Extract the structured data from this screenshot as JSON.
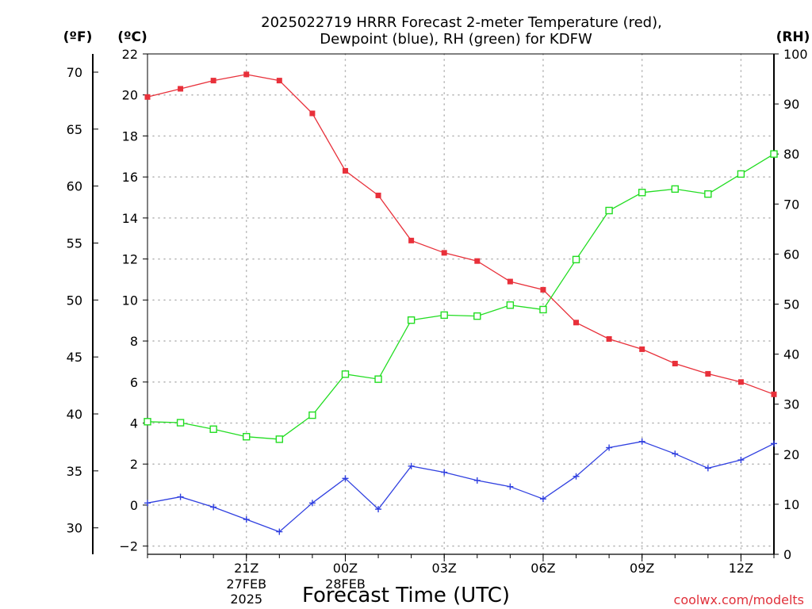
{
  "chart_data": {
    "type": "line",
    "title_line1": "2025022719 HRRR Forecast 2-meter Temperature (red),",
    "title_line2": "Dewpoint (blue), RH (green) for KDFW",
    "xlabel": "Forecast Time (UTC)",
    "credit": "coolwx.com/modelts",
    "axes": {
      "left_f": {
        "unit": "(ºF)",
        "ticks": [
          30,
          35,
          40,
          45,
          50,
          55,
          60,
          65,
          70
        ]
      },
      "left_c": {
        "unit": "(ºC)",
        "ylim": [
          -2.4,
          22
        ],
        "ticks": [
          -2,
          0,
          2,
          4,
          6,
          8,
          10,
          12,
          14,
          16,
          18,
          20,
          22
        ]
      },
      "right_rh": {
        "unit": "(RH)",
        "ylim": [
          0,
          100
        ],
        "ticks": [
          0,
          10,
          20,
          30,
          40,
          50,
          60,
          70,
          80,
          90,
          100
        ]
      }
    },
    "x_hours": [
      18,
      19,
      20,
      21,
      22,
      23,
      24,
      25,
      26,
      27,
      28,
      29,
      30,
      31,
      32,
      33,
      34,
      35,
      36,
      37
    ],
    "x_ticks": [
      {
        "hour": 21,
        "label": "21Z",
        "sub": [
          "27FEB",
          "2025"
        ]
      },
      {
        "hour": 24,
        "label": "00Z",
        "sub": [
          "28FEB"
        ]
      },
      {
        "hour": 27,
        "label": "03Z",
        "sub": []
      },
      {
        "hour": 30,
        "label": "06Z",
        "sub": []
      },
      {
        "hour": 33,
        "label": "09Z",
        "sub": []
      },
      {
        "hour": 36,
        "label": "12Z",
        "sub": []
      }
    ],
    "series": [
      {
        "name": "Temperature",
        "color": "#e8303a",
        "marker": "filled-square",
        "axis": "c",
        "values": [
          19.9,
          20.3,
          20.7,
          21.0,
          20.7,
          19.1,
          16.3,
          15.1,
          12.9,
          12.3,
          11.9,
          10.9,
          10.5,
          8.9,
          8.1,
          7.6,
          6.9,
          6.4,
          6.0,
          5.4
        ]
      },
      {
        "name": "Dewpoint",
        "color": "#3040e0",
        "marker": "plus",
        "axis": "c",
        "values": [
          0.1,
          0.4,
          -0.1,
          -0.7,
          -1.3,
          0.1,
          1.3,
          -0.2,
          1.9,
          1.6,
          1.2,
          0.9,
          0.3,
          1.4,
          2.8,
          3.1,
          2.5,
          1.8,
          2.2,
          3.0
        ]
      },
      {
        "name": "RH",
        "color": "#22dd22",
        "marker": "open-square",
        "axis": "rh",
        "values": [
          26.5,
          26.3,
          25.0,
          23.5,
          23.0,
          27.8,
          36.0,
          35.0,
          46.8,
          47.8,
          47.6,
          49.8,
          48.9,
          58.9,
          68.7,
          72.3,
          73.0,
          72.0,
          76.0,
          80.0
        ]
      }
    ]
  }
}
